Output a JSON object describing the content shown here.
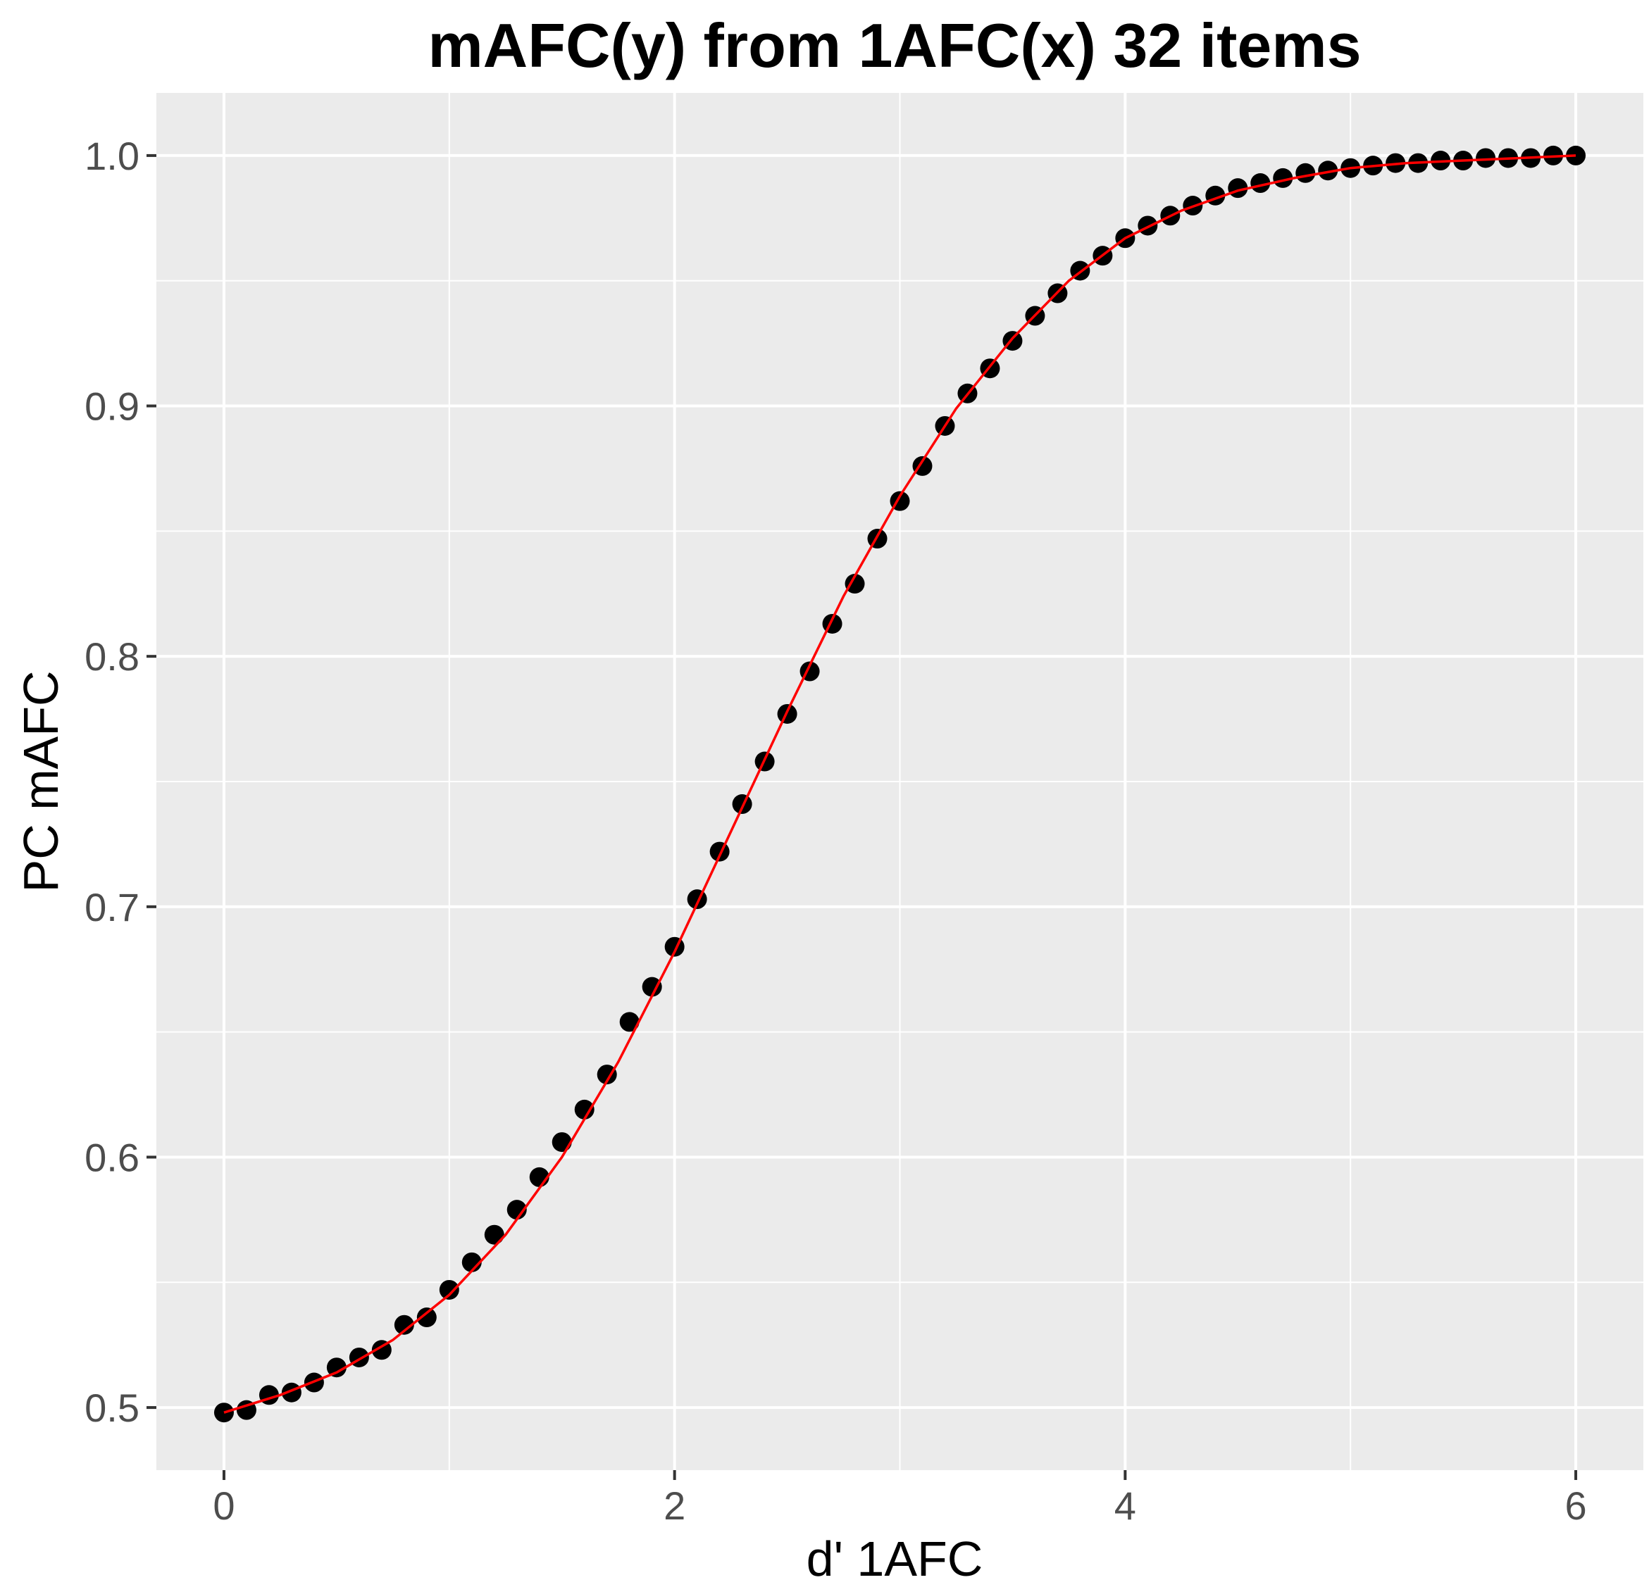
{
  "chart_data": {
    "type": "scatter",
    "title": "mAFC(y) from 1AFC(x) 32 items",
    "xlabel": "d' 1AFC",
    "ylabel": "PC mAFC",
    "xlim": [
      -0.3,
      6.3
    ],
    "ylim": [
      0.475,
      1.025
    ],
    "x_ticks": [
      0,
      2,
      4,
      6
    ],
    "x_tick_labels": [
      "0",
      "2",
      "4",
      "6"
    ],
    "y_ticks": [
      0.5,
      0.6,
      0.7,
      0.8,
      0.9,
      1.0
    ],
    "y_tick_labels": [
      "0.5",
      "0.6",
      "0.7",
      "0.8",
      "0.9",
      "1.0"
    ],
    "grid": true,
    "background_color": "#ebebeb",
    "grid_color": "#ffffff",
    "series": [
      {
        "type": "points",
        "color": "#000000",
        "x": [
          0.0,
          0.1,
          0.2,
          0.3,
          0.4,
          0.5,
          0.6,
          0.7,
          0.8,
          0.9,
          1.0,
          1.1,
          1.2,
          1.3,
          1.4,
          1.5,
          1.6,
          1.7,
          1.8,
          1.9,
          2.0,
          2.1,
          2.2,
          2.3,
          2.4,
          2.5,
          2.6,
          2.7,
          2.8,
          2.9,
          3.0,
          3.1,
          3.2,
          3.3,
          3.4,
          3.5,
          3.6,
          3.7,
          3.8,
          3.9,
          4.0,
          4.1,
          4.2,
          4.3,
          4.4,
          4.5,
          4.6,
          4.7,
          4.8,
          4.9,
          5.0,
          5.1,
          5.2,
          5.3,
          5.4,
          5.5,
          5.6,
          5.7,
          5.8,
          5.9,
          6.0
        ],
        "y": [
          0.498,
          0.499,
          0.505,
          0.506,
          0.51,
          0.516,
          0.52,
          0.523,
          0.533,
          0.536,
          0.547,
          0.558,
          0.569,
          0.579,
          0.592,
          0.606,
          0.619,
          0.633,
          0.654,
          0.668,
          0.684,
          0.703,
          0.722,
          0.741,
          0.758,
          0.777,
          0.794,
          0.813,
          0.829,
          0.847,
          0.862,
          0.876,
          0.892,
          0.905,
          0.915,
          0.926,
          0.936,
          0.945,
          0.954,
          0.96,
          0.967,
          0.972,
          0.976,
          0.98,
          0.984,
          0.987,
          0.989,
          0.991,
          0.993,
          0.994,
          0.995,
          0.996,
          0.997,
          0.997,
          0.998,
          0.998,
          0.999,
          0.999,
          0.999,
          1.0,
          1.0
        ]
      },
      {
        "type": "line",
        "color": "#ff0000",
        "x": [
          0.0,
          0.25,
          0.5,
          0.75,
          1.0,
          1.25,
          1.5,
          1.75,
          2.0,
          2.25,
          2.5,
          2.75,
          3.0,
          3.25,
          3.5,
          3.75,
          4.0,
          4.25,
          4.5,
          4.75,
          5.0,
          5.25,
          5.5,
          5.75,
          6.0
        ],
        "y": [
          0.498,
          0.505,
          0.514,
          0.527,
          0.545,
          0.569,
          0.6,
          0.638,
          0.682,
          0.73,
          0.778,
          0.824,
          0.864,
          0.899,
          0.927,
          0.95,
          0.967,
          0.978,
          0.986,
          0.991,
          0.995,
          0.997,
          0.998,
          0.999,
          1.0
        ]
      }
    ]
  }
}
